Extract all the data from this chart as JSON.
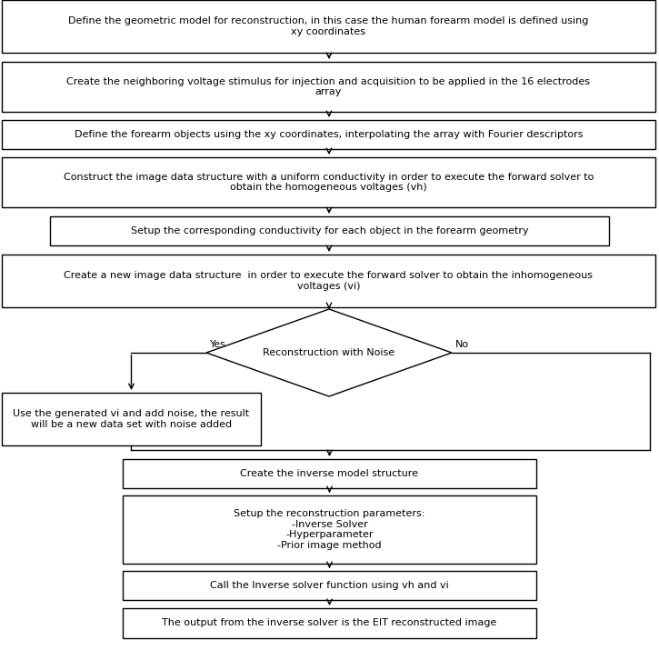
{
  "bg_color": "#ffffff",
  "box_color": "#ffffff",
  "box_edge_color": "#000000",
  "text_color": "#000000",
  "arrow_color": "#000000",
  "font_size": 8.0,
  "box1_text": "Define the geometric model for reconstruction, in this case the human forearm model is defined using\nxy coordinates",
  "box2_text": "Create the neighboring voltage stimulus for injection and acquisition to be applied in the 16 electrodes\narray",
  "box3_text": "Define the forearm objects using the xy coordinates, interpolating the array with Fourier descriptors",
  "box4_text": "Construct the image data structure with a uniform conductivity in order to execute the forward solver to\nobtain the homogeneous voltages (vh)",
  "box5_text": "Setup the corresponding conductivity for each object in the forearm geometry",
  "box6_text": "Create a new image data structure  in order to execute the forward solver to obtain the inhomogeneous\nvoltages (vi)",
  "diamond_text": "Reconstruction with Noise",
  "noise_text": "Use the generated vi and add noise, the result\nwill be a new data set with noise added",
  "box7_text": "Create the inverse model structure",
  "box8_text": "Setup the reconstruction parameters:\n-Inverse Solver\n-Hyperparameter\n-Prior image method",
  "box9_text": "Call the Inverse solver function using vh and vi",
  "box10_text": "The output from the inverse solver is the EIT reconstructed image",
  "yes_label": "Yes",
  "no_label": "No"
}
